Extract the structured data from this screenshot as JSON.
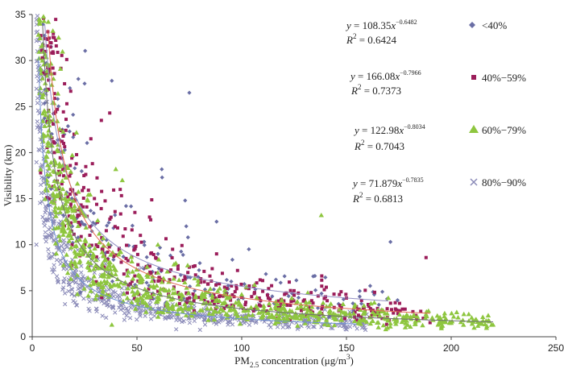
{
  "chart_data": {
    "type": "scatter",
    "title": "",
    "xlabel": "PM",
    "xlabel_sub": "2.5",
    "xlabel_rest": " concentration (μg/m",
    "xlabel_sup": "3",
    "xlabel_end": ")",
    "ylabel": "Visibility (km)",
    "xlim": [
      0,
      250
    ],
    "ylim": [
      0,
      35
    ],
    "xticks": [
      0,
      50,
      100,
      150,
      200,
      250
    ],
    "yticks": [
      0,
      5,
      10,
      15,
      20,
      25,
      30,
      35
    ],
    "grid": false,
    "legend_position": "right",
    "series": [
      {
        "name": "<40%",
        "marker": "diamond",
        "color": "#6a6ea5",
        "fit": {
          "a": 108.35,
          "b": -0.6482,
          "r2": 0.6424,
          "xmax": 170,
          "color": "#9490c4"
        },
        "equation_text": "108.35",
        "exponent_text": "−0.6482",
        "r2_text": "0.6424",
        "points": [
          [
            5,
            31.8
          ],
          [
            9,
            31.5
          ],
          [
            18,
            27
          ],
          [
            22,
            28
          ],
          [
            25,
            27.5
          ],
          [
            38,
            27.8
          ],
          [
            75,
            26.5
          ],
          [
            62,
            17.3
          ],
          [
            73,
            14.8
          ],
          [
            88,
            12.5
          ],
          [
            171,
            10.3
          ],
          [
            80,
            8
          ],
          [
            60,
            9
          ],
          [
            95,
            6
          ]
        ]
      },
      {
        "name": "40%−59%",
        "marker": "square",
        "color": "#9b1d5a",
        "fit": {
          "a": 166.08,
          "b": -0.7966,
          "r2": 0.7373,
          "xmax": 190,
          "color": "#e26a56"
        },
        "equation_text": "166.08",
        "exponent_text": "−0.7966",
        "r2_text": "0.7373",
        "points": [
          [
            4,
            17.8
          ],
          [
            8,
            15
          ],
          [
            12,
            24.7
          ],
          [
            15,
            21
          ],
          [
            20,
            22
          ],
          [
            28,
            21.5
          ],
          [
            33,
            23.5
          ],
          [
            37,
            24.3
          ],
          [
            42,
            16
          ],
          [
            49,
            13.5
          ],
          [
            56,
            13
          ],
          [
            67,
            9.5
          ],
          [
            88,
            9
          ],
          [
            98,
            7.2
          ],
          [
            110,
            6.1
          ],
          [
            125,
            5
          ],
          [
            150,
            4.2
          ],
          [
            188,
            8.6
          ],
          [
            178,
            3
          ]
        ]
      },
      {
        "name": "60%−79%",
        "marker": "triangle",
        "color": "#8ec63f",
        "fit": {
          "a": 122.98,
          "b": -0.8034,
          "r2": 0.7043,
          "xmax": 220,
          "color": "#6f7072"
        },
        "equation_text": "122.98",
        "exponent_text": "−0.8034",
        "r2_text": "0.7043",
        "points": [
          [
            4,
            29
          ],
          [
            5,
            26
          ],
          [
            8,
            21
          ],
          [
            10,
            18
          ],
          [
            14,
            15
          ],
          [
            43,
            17
          ],
          [
            60,
            10
          ],
          [
            138,
            13.2
          ],
          [
            170,
            4.2
          ],
          [
            200,
            1.5
          ],
          [
            210,
            1.4
          ],
          [
            220,
            1.3
          ],
          [
            38,
            1.3
          ],
          [
            120,
            2.5
          ]
        ]
      },
      {
        "name": "80%−90%",
        "marker": "cross",
        "color": "#8a8ab8",
        "fit": {
          "a": 71.879,
          "b": -0.7835,
          "r2": 0.6813,
          "xmax": 155,
          "color": "#6e8fd1"
        },
        "equation_text": "71.879",
        "exponent_text": "−0.7835",
        "r2_text": "0.6813",
        "points": [
          [
            2,
            10
          ],
          [
            5,
            13
          ],
          [
            8,
            9
          ],
          [
            10,
            7
          ],
          [
            15,
            6
          ],
          [
            30,
            4
          ],
          [
            60,
            3
          ],
          [
            90,
            2.5
          ],
          [
            120,
            2
          ],
          [
            150,
            1.7
          ]
        ]
      }
    ]
  },
  "text": {
    "y_sym": "y",
    "x_sym": "x",
    "eq_sign": " = ",
    "r_sym": "R",
    "r_sup": "2"
  }
}
